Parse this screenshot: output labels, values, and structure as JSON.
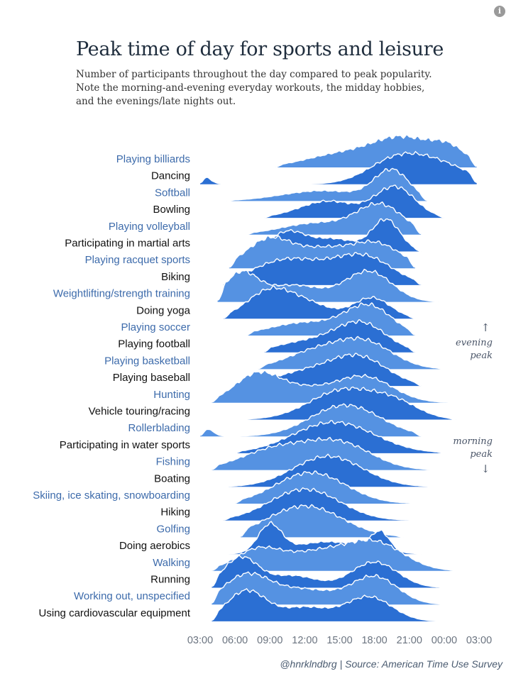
{
  "header": {
    "info_glyph": "i",
    "title": "Peak time of day for sports and leisure",
    "subtitle_lines": [
      "Number of participants throughout the day compared to peak popularity.",
      "Note the morning-and-evening everyday workouts, the midday hobbies,",
      "and the evenings/late nights out."
    ]
  },
  "annotations": {
    "evening": {
      "arrow": "↑",
      "lines": [
        "evening",
        "peak"
      ]
    },
    "morning": {
      "lines": [
        "morning",
        "peak"
      ],
      "arrow": "↓"
    }
  },
  "footer": {
    "credit": "@hnrklndbrg | Source: American Time Use Survey"
  },
  "colors": {
    "light": "#5592e2",
    "dark": "#2b6fd3",
    "label_light": "#3d6bab",
    "label_dark": "#111111",
    "axis_text": "#6b7480"
  },
  "chart_data": {
    "type": "area",
    "xlabel": "",
    "ylabel": "",
    "x_ticks": [
      "03:00",
      "06:00",
      "09:00",
      "12:00",
      "15:00",
      "18:00",
      "21:00",
      "00:00",
      "03:00"
    ],
    "xlim_hours": [
      3,
      27
    ],
    "ylim": [
      0,
      1
    ],
    "grid": false,
    "legend": "none",
    "series": [
      {
        "name": "Playing billiards",
        "shade": "light",
        "start": 9.5,
        "end": 26.8,
        "peaks": [
          [
            20.5,
            1.0,
            2.6
          ],
          [
            15.0,
            0.45,
            3.0
          ],
          [
            24.5,
            0.55,
            1.5
          ]
        ]
      },
      {
        "name": "Dancing",
        "shade": "dark",
        "start": 3.0,
        "end": 26.8,
        "peaks": [
          [
            20.0,
            0.55,
            2.5
          ],
          [
            24.0,
            0.35,
            2.5
          ],
          [
            3.2,
            0.2,
            0.6
          ]
        ]
      },
      {
        "name": "Softball",
        "shade": "light",
        "start": 5.3,
        "end": 22.5,
        "peaks": [
          [
            19.5,
            1.0,
            1.5
          ],
          [
            13.5,
            0.35,
            3.5
          ]
        ]
      },
      {
        "name": "Bowling",
        "shade": "dark",
        "start": 8.5,
        "end": 24.0,
        "peaks": [
          [
            19.8,
            1.0,
            1.7
          ],
          [
            14.0,
            0.55,
            2.5
          ]
        ]
      },
      {
        "name": "Playing volleyball",
        "shade": "light",
        "start": 7.0,
        "end": 22.0,
        "peaks": [
          [
            18.5,
            1.0,
            2.0
          ],
          [
            13.0,
            0.4,
            3.0
          ]
        ]
      },
      {
        "name": "Participating in martial arts",
        "shade": "dark",
        "start": 8.0,
        "end": 22.0,
        "peaks": [
          [
            19.0,
            1.0,
            1.2
          ],
          [
            10.5,
            0.6,
            1.5
          ],
          [
            14.5,
            0.4,
            2.0
          ]
        ]
      },
      {
        "name": "Playing racquet sports",
        "shade": "light",
        "start": 5.5,
        "end": 21.5,
        "peaks": [
          [
            9.0,
            1.0,
            2.0
          ],
          [
            18.0,
            0.85,
            2.2
          ],
          [
            13.5,
            0.55,
            2.0
          ]
        ]
      },
      {
        "name": "Biking",
        "shade": "dark",
        "start": 5.0,
        "end": 22.0,
        "peaks": [
          [
            10.5,
            0.9,
            3.0
          ],
          [
            17.0,
            1.0,
            2.5
          ]
        ]
      },
      {
        "name": "Weightlifting/strength training",
        "shade": "light",
        "start": 4.5,
        "end": 23.5,
        "peaks": [
          [
            6.5,
            0.9,
            1.4
          ],
          [
            17.5,
            1.0,
            2.0
          ],
          [
            11.0,
            0.55,
            2.5
          ]
        ]
      },
      {
        "name": "Doing yoga",
        "shade": "dark",
        "start": 5.0,
        "end": 21.5,
        "peaks": [
          [
            9.0,
            1.0,
            2.0
          ],
          [
            17.8,
            0.75,
            1.6
          ],
          [
            12.5,
            0.45,
            2.0
          ]
        ]
      },
      {
        "name": "Playing soccer",
        "shade": "light",
        "start": 7.0,
        "end": 21.5,
        "peaks": [
          [
            17.5,
            1.0,
            2.0
          ],
          [
            12.0,
            0.45,
            3.0
          ]
        ]
      },
      {
        "name": "Playing football",
        "shade": "dark",
        "start": 8.5,
        "end": 21.5,
        "peaks": [
          [
            16.8,
            1.0,
            2.2
          ],
          [
            12.0,
            0.35,
            2.5
          ]
        ]
      },
      {
        "name": "Playing basketball",
        "shade": "light",
        "start": 8.0,
        "end": 24.0,
        "peaks": [
          [
            17.0,
            1.0,
            2.5
          ],
          [
            12.5,
            0.55,
            2.5
          ]
        ]
      },
      {
        "name": "Playing baseball",
        "shade": "dark",
        "start": 6.5,
        "end": 22.0,
        "peaks": [
          [
            16.5,
            1.0,
            2.5
          ],
          [
            11.5,
            0.4,
            2.5
          ]
        ]
      },
      {
        "name": "Hunting",
        "shade": "light",
        "start": 4.0,
        "end": 26.0,
        "peaks": [
          [
            8.0,
            1.0,
            2.0
          ],
          [
            17.0,
            0.9,
            2.5
          ],
          [
            12.0,
            0.35,
            2.0
          ]
        ]
      },
      {
        "name": "Vehicle touring/racing",
        "shade": "dark",
        "start": 6.5,
        "end": 25.0,
        "peaks": [
          [
            15.5,
            1.0,
            3.0
          ],
          [
            20.0,
            0.4,
            2.0
          ]
        ]
      },
      {
        "name": "Rollerblading",
        "shade": "light",
        "start": 3.0,
        "end": 22.0,
        "peaks": [
          [
            15.5,
            1.0,
            3.0
          ],
          [
            3.5,
            0.25,
            0.6
          ]
        ]
      },
      {
        "name": "Participating in water sports",
        "shade": "dark",
        "start": 6.0,
        "end": 24.0,
        "peaks": [
          [
            14.5,
            1.0,
            3.5
          ]
        ]
      },
      {
        "name": "Fishing",
        "shade": "light",
        "start": 4.0,
        "end": 23.0,
        "peaks": [
          [
            9.5,
            0.8,
            3.0
          ],
          [
            15.0,
            1.0,
            2.8
          ]
        ]
      },
      {
        "name": "Boating",
        "shade": "dark",
        "start": 5.0,
        "end": 23.0,
        "peaks": [
          [
            14.0,
            1.0,
            3.0
          ]
        ]
      },
      {
        "name": "Skiing, ice skating, snowboarding",
        "shade": "light",
        "start": 6.0,
        "end": 22.0,
        "peaks": [
          [
            12.5,
            1.0,
            3.0
          ]
        ]
      },
      {
        "name": "Hiking",
        "shade": "dark",
        "start": 5.0,
        "end": 21.5,
        "peaks": [
          [
            12.0,
            1.0,
            3.0
          ]
        ]
      },
      {
        "name": "Golfing",
        "shade": "light",
        "start": 6.5,
        "end": 20.5,
        "peaks": [
          [
            12.0,
            1.0,
            3.2
          ]
        ]
      },
      {
        "name": "Doing aerobics",
        "shade": "dark",
        "start": 4.5,
        "end": 22.0,
        "peaks": [
          [
            9.0,
            1.0,
            1.0
          ],
          [
            18.5,
            0.7,
            0.8
          ],
          [
            14.0,
            0.45,
            3.0
          ]
        ]
      },
      {
        "name": "Walking",
        "shade": "light",
        "start": 4.0,
        "end": 25.0,
        "peaks": [
          [
            8.0,
            0.75,
            2.0
          ],
          [
            18.0,
            1.0,
            2.5
          ],
          [
            13.0,
            0.6,
            2.5
          ]
        ]
      },
      {
        "name": "Running",
        "shade": "dark",
        "start": 4.0,
        "end": 26.0,
        "peaks": [
          [
            6.5,
            1.0,
            1.5
          ],
          [
            18.0,
            0.85,
            2.0
          ],
          [
            11.0,
            0.4,
            2.0
          ]
        ]
      },
      {
        "name": "Working out, unspecified",
        "shade": "light",
        "start": 4.0,
        "end": 24.0,
        "peaks": [
          [
            7.0,
            1.0,
            2.0
          ],
          [
            18.0,
            0.95,
            2.0
          ],
          [
            12.0,
            0.5,
            2.5
          ]
        ]
      },
      {
        "name": "Using cardiovascular equipment",
        "shade": "dark",
        "start": 4.0,
        "end": 24.0,
        "peaks": [
          [
            7.0,
            1.0,
            1.7
          ],
          [
            17.5,
            0.8,
            2.0
          ],
          [
            12.0,
            0.45,
            2.0
          ]
        ]
      }
    ]
  }
}
